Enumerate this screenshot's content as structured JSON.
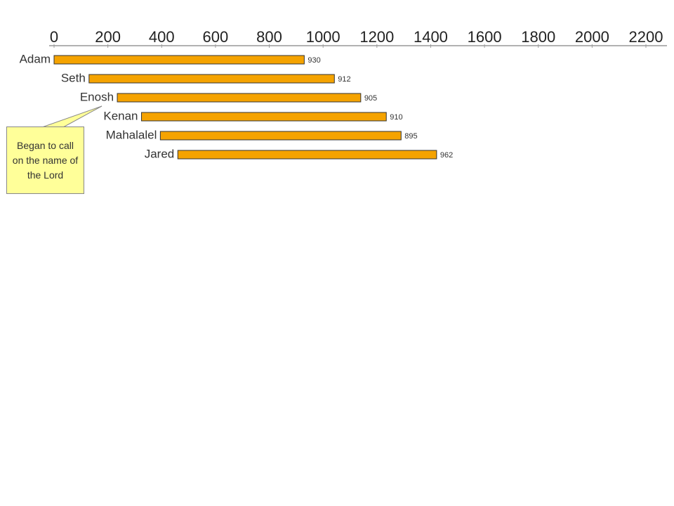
{
  "chart_data": {
    "type": "bar",
    "orientation": "horizontal",
    "categories": [
      "Adam",
      "Seth",
      "Enosh",
      "Kenan",
      "Mahalalel",
      "Jared"
    ],
    "starts": [
      0,
      130,
      235,
      325,
      395,
      460
    ],
    "values": [
      930,
      912,
      905,
      910,
      895,
      962
    ],
    "color": "#f5a300",
    "xlim": [
      0,
      2200
    ],
    "xticks": [
      0,
      200,
      400,
      600,
      800,
      1000,
      1200,
      1400,
      1600,
      1800,
      2000,
      2200
    ],
    "annotation": {
      "text": "Began to call on the name of the Lord",
      "category": 2
    }
  }
}
